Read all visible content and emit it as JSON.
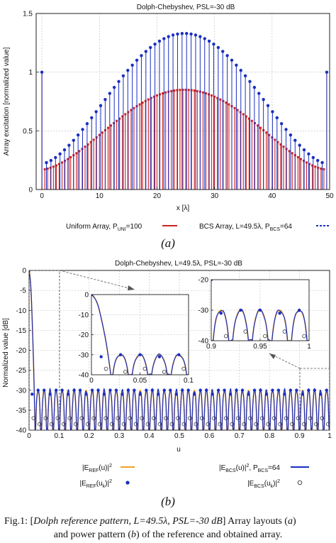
{
  "chart_data": [
    {
      "id": "a",
      "type": "stem",
      "title": "Dolph-Chebyshev, PSL=-30 dB",
      "xlabel": "x [λ]",
      "ylabel": "Array excitation [normalized value]",
      "xlim": [
        -1,
        50
      ],
      "ylim": [
        0,
        1.5
      ],
      "xticks": [
        0,
        10,
        20,
        30,
        40,
        50
      ],
      "yticks": [
        0,
        0.5,
        1,
        1.5
      ],
      "xtick_labels": [
        "0",
        "10",
        "20",
        "30",
        "40",
        "50"
      ],
      "ytick_labels": [
        "0",
        "0.5",
        "1",
        "1.5"
      ],
      "grid": true,
      "legend_position": "bottom",
      "series": [
        {
          "name": "Uniform Array, P_UNI=100",
          "label_main": "Uniform Array, P",
          "label_sub": "UNI",
          "label_tail": "=100",
          "color": "#cc2222",
          "n": 100,
          "x_range": [
            0,
            49.5
          ],
          "peak": 0.85,
          "edge": 1.0,
          "near_edge": 0.17
        },
        {
          "name": "BCS Array, L=49.5λ, P_BCS=64",
          "label_main": "BCS Array, L=49.5λ, P",
          "label_sub": "BCS",
          "label_tail": "=64",
          "color": "#1a2fc0",
          "n": 64,
          "x_range": [
            0,
            49.5
          ],
          "peak": 1.33,
          "edge": 1.0,
          "near_edge": 0.22
        }
      ],
      "panel_label": "(a)"
    },
    {
      "id": "b",
      "type": "line",
      "title": "Dolph-Chebyshev, L=49.5λ, PSL=-30 dB",
      "xlabel": "u",
      "ylabel": "Normalized value [dB]",
      "xlim": [
        0,
        1
      ],
      "ylim": [
        -40,
        0
      ],
      "xticks": [
        0,
        0.1,
        0.2,
        0.3,
        0.4,
        0.5,
        0.6,
        0.7,
        0.8,
        0.9,
        1
      ],
      "xtick_labels": [
        "0",
        "0.1",
        "0.2",
        "0.3",
        "0.4",
        "0.5",
        "0.6",
        "0.7",
        "0.8",
        "0.9",
        "1"
      ],
      "yticks": [
        0,
        -5,
        -10,
        -15,
        -20,
        -25,
        -30,
        -35,
        -40
      ],
      "ytick_labels": [
        "0",
        "-5",
        "-10",
        "-15",
        "-20",
        "-25",
        "-30",
        "-35",
        "-40"
      ],
      "grid": true,
      "sidelobe_level_db": -30,
      "legend": {
        "ref_line": "|E_REF(u)|²",
        "bcs_line": "|E_BCS(u)|², P_BCS=64",
        "ref_pts": "|E_REF(u_k)|²",
        "bcs_pts": "|E_BCS(u_k)|²"
      },
      "legend_parts": {
        "ref_line": [
          "|E",
          "REF",
          "(u)|",
          "2",
          "",
          ""
        ],
        "bcs_line": [
          "|E",
          "BCS",
          "(u)|",
          "2",
          ", P",
          "BCS",
          "=64"
        ],
        "ref_pts": [
          "|E",
          "REF",
          "(u",
          "k",
          ")|",
          "2"
        ],
        "bcs_pts": [
          "|E",
          "BCS",
          "(u",
          "k",
          ")|",
          "2"
        ]
      },
      "colors": {
        "ref": "#f0a020",
        "bcs": "#1a2fc0"
      },
      "insets": [
        {
          "name": "inset-left",
          "xlim": [
            0,
            0.1
          ],
          "ylim": [
            -40,
            0
          ],
          "xticks": [
            0,
            0.05,
            0.1
          ],
          "xtick_labels": [
            "0",
            "0.05",
            "0.1"
          ],
          "yticks": [
            0,
            -10,
            -20,
            -30,
            -40
          ],
          "ytick_labels": [
            "0",
            "-10",
            "-20",
            "-30",
            "-40"
          ]
        },
        {
          "name": "inset-right",
          "xlim": [
            0.9,
            1
          ],
          "ylim": [
            -40,
            -20
          ],
          "xticks": [
            0.9,
            0.95,
            1
          ],
          "xtick_labels": [
            "0.9",
            "0.95",
            "1"
          ],
          "yticks": [
            -20,
            -30,
            -40
          ],
          "ytick_labels": [
            "-20",
            "-30",
            "-40"
          ]
        }
      ],
      "panel_label": "(b)"
    }
  ],
  "caption": {
    "prefix": "Fig.1: [",
    "italic": "Dolph reference pattern, L=49.5λ, PSL=-30 dB",
    "line1_tail": "] Array layouts (",
    "a": "a",
    "close": ")",
    "line2_start": "and power pattern (",
    "b": "b",
    "line2_tail": ") of the reference and obtained array."
  }
}
